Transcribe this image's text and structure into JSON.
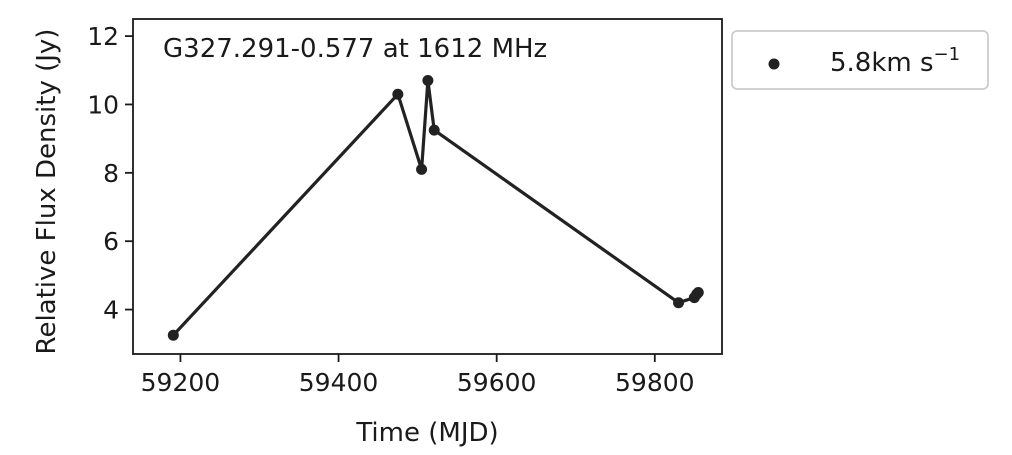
{
  "chart_data": {
    "type": "line",
    "title": "G327.291-0.577 at 1612 MHz",
    "xlabel": "Time (MJD)",
    "ylabel": "Relative Flux Density (Jy)",
    "xlim": [
      59140,
      59885
    ],
    "ylim": [
      2.7,
      12.5
    ],
    "xticks": [
      59200,
      59400,
      59600,
      59800
    ],
    "yticks": [
      4,
      6,
      8,
      10,
      12
    ],
    "grid": false,
    "legend_position": "outside-right-top",
    "series": [
      {
        "name": "5.8km s",
        "name_superscript": "−1",
        "color": "#222222",
        "marker": "circle",
        "x": [
          59191,
          59475,
          59505,
          59513,
          59521,
          59830,
          59850,
          59853,
          59855
        ],
        "y": [
          3.25,
          10.3,
          8.1,
          10.7,
          9.25,
          4.2,
          4.35,
          4.45,
          4.5
        ]
      }
    ]
  }
}
